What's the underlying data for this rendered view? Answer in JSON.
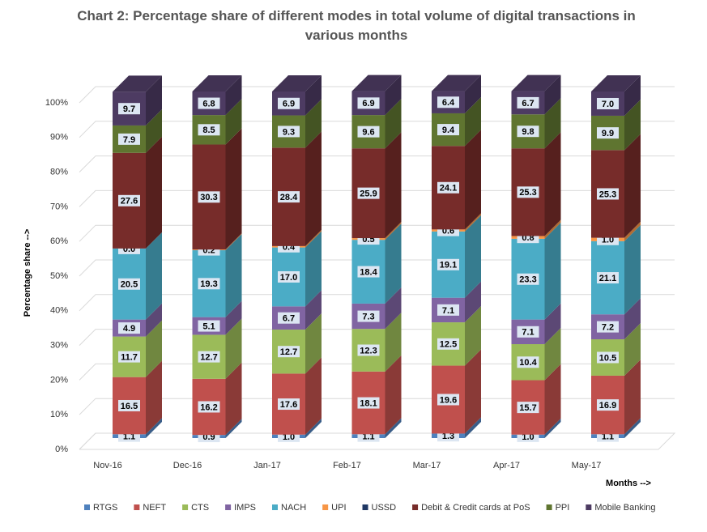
{
  "chart_data": {
    "type": "bar3d_stacked",
    "title": "Chart 2: Percentage share of different modes in total volume of digital transactions in various months",
    "y_label": "Percentage share -->",
    "x_label": "Months -->",
    "categories": [
      "Nov-16",
      "Dec-16",
      "Jan-17",
      "Feb-17",
      "Mar-17",
      "Apr-17",
      "May-17"
    ],
    "ylim": [
      0,
      100
    ],
    "yticks": [
      {
        "value": 0,
        "label": "0%"
      },
      {
        "value": 10,
        "label": "10%"
      },
      {
        "value": 20,
        "label": "20%"
      },
      {
        "value": 30,
        "label": "30%"
      },
      {
        "value": 40,
        "label": "40%"
      },
      {
        "value": 50,
        "label": "50%"
      },
      {
        "value": 60,
        "label": "60%"
      },
      {
        "value": 70,
        "label": "70%"
      },
      {
        "value": 80,
        "label": "80%"
      },
      {
        "value": 90,
        "label": "90%"
      },
      {
        "value": 100,
        "label": "100%"
      }
    ],
    "grid": true,
    "legend": "bottom",
    "series": [
      {
        "name": "RTGS",
        "color": "#4f81bd",
        "values": [
          1.1,
          0.9,
          1.0,
          1.1,
          1.3,
          1.0,
          1.1
        ],
        "value_labels": [
          "1.1",
          "0.9",
          "1.0",
          "1.1",
          "1.3",
          "1.0",
          "1.1"
        ]
      },
      {
        "name": "NEFT",
        "color": "#c0504d",
        "values": [
          16.5,
          16.2,
          17.6,
          18.1,
          19.6,
          15.7,
          16.9
        ],
        "value_labels": [
          "16.5",
          "16.2",
          "17.6",
          "18.1",
          "19.6",
          "15.7",
          "16.9"
        ]
      },
      {
        "name": "CTS",
        "color": "#9bbb59",
        "values": [
          11.7,
          12.7,
          12.7,
          12.3,
          12.5,
          10.4,
          10.5
        ],
        "value_labels": [
          "11.7",
          "12.7",
          "12.7",
          "12.3",
          "12.5",
          "10.4",
          "10.5"
        ]
      },
      {
        "name": "IMPS",
        "color": "#8064a2",
        "values": [
          4.9,
          5.1,
          6.7,
          7.3,
          7.1,
          7.1,
          7.2
        ],
        "value_labels": [
          "4.9",
          "5.1",
          "6.7",
          "7.3",
          "7.1",
          "7.1",
          "7.2"
        ]
      },
      {
        "name": "NACH",
        "color": "#4bacc6",
        "values": [
          20.5,
          19.3,
          17.0,
          18.4,
          19.1,
          23.3,
          21.1
        ],
        "value_labels": [
          "20.5",
          "19.3",
          "17.0",
          "18.4",
          "19.1",
          "23.3",
          "21.1"
        ]
      },
      {
        "name": "UPI",
        "color": "#f79646",
        "values": [
          0.0,
          0.2,
          0.4,
          0.5,
          0.6,
          0.8,
          1.0
        ],
        "value_labels": [
          "0.0",
          "0.2",
          "0.4",
          "0.5",
          "0.6",
          "0.8",
          "1.0"
        ]
      },
      {
        "name": "USSD",
        "color": "#1f3864",
        "values": [
          0,
          0,
          0,
          0,
          0,
          0,
          0
        ]
      },
      {
        "name": "Debit & Credit cards at PoS",
        "color": "#772c2a",
        "values": [
          27.6,
          30.3,
          28.4,
          25.9,
          24.1,
          25.3,
          25.3
        ],
        "value_labels": [
          "27.6",
          "30.3",
          "28.4",
          "25.9",
          "24.1",
          "25.3",
          "25.3"
        ]
      },
      {
        "name": "PPI",
        "color": "#5f7530",
        "values": [
          7.9,
          8.5,
          9.3,
          9.6,
          9.4,
          9.8,
          9.9
        ],
        "value_labels": [
          "7.9",
          "8.5",
          "9.3",
          "9.6",
          "9.4",
          "9.8",
          "9.9"
        ]
      },
      {
        "name": "Mobile Banking",
        "color": "#4d3b62",
        "values": [
          9.7,
          6.8,
          6.9,
          6.9,
          6.4,
          6.7,
          7.0
        ],
        "value_labels": [
          "9.7",
          "6.8",
          "6.9",
          "6.9",
          "6.4",
          "6.7",
          "7.0"
        ]
      }
    ]
  }
}
